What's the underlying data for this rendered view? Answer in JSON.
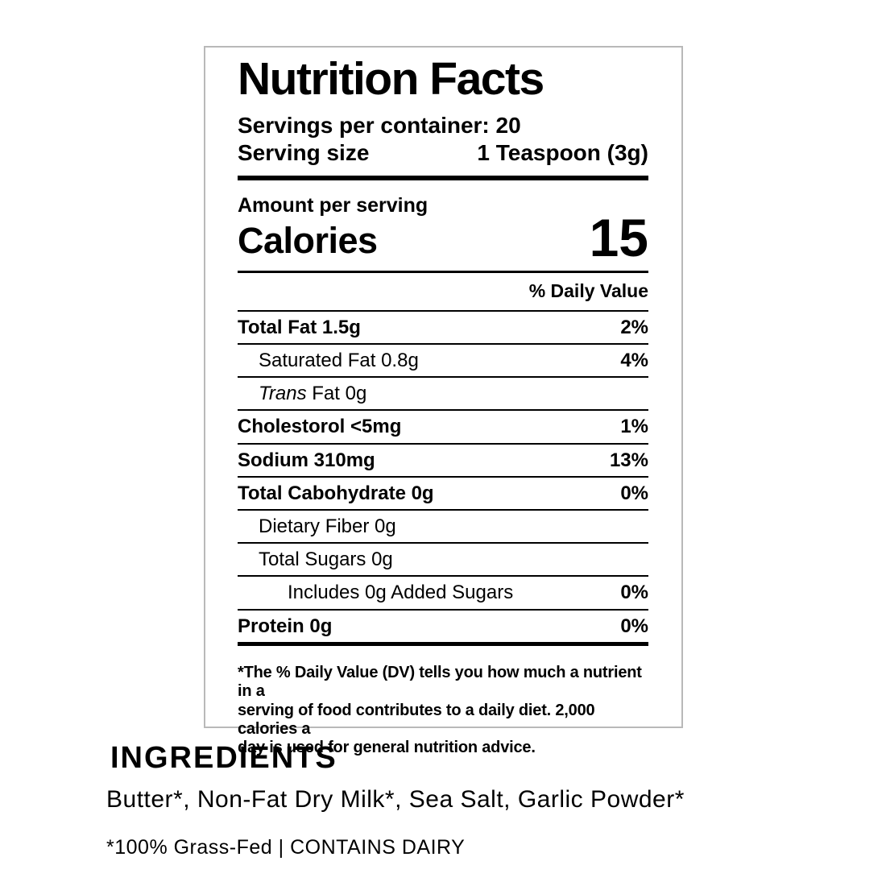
{
  "label": {
    "title": "Nutrition Facts",
    "servings_per_container": "Servings per container: 20",
    "serving_size_label": "Serving size",
    "serving_size_value": "1 Teaspoon (3g)",
    "amount_per_serving": "Amount per serving",
    "calories_label": "Calories",
    "calories_value": "15",
    "daily_value_header": "% Daily Value",
    "rows": [
      {
        "label": "Total Fat 1.5g",
        "dv": "2%",
        "bold": true,
        "indent": 0
      },
      {
        "label": "Saturated Fat 0.8g",
        "dv": "4%",
        "bold": false,
        "indent": 1
      },
      {
        "label_italic": "Trans",
        "label": " Fat 0g",
        "dv": "",
        "bold": false,
        "indent": 1
      },
      {
        "label": "Cholestorol <5mg",
        "dv": "1%",
        "bold": true,
        "indent": 0
      },
      {
        "label": "Sodium 310mg",
        "dv": "13%",
        "bold": true,
        "indent": 0
      },
      {
        "label": "Total Cabohydrate 0g",
        "dv": "0%",
        "bold": true,
        "indent": 0
      },
      {
        "label": "Dietary Fiber 0g",
        "dv": "",
        "bold": false,
        "indent": 1
      },
      {
        "label": "Total Sugars 0g",
        "dv": "",
        "bold": false,
        "indent": 1
      },
      {
        "label": "Includes 0g Added Sugars",
        "dv": "0%",
        "bold": false,
        "indent": 2
      },
      {
        "label": "Protein 0g",
        "dv": "0%",
        "bold": true,
        "indent": 0,
        "last": true
      }
    ],
    "footnote": "*The % Daily Value (DV) tells you how much a nutrient in a\nserving of food contributes to a daily diet. 2,000 calories a\nday is used for general nutrition advice.",
    "colors": {
      "text": "#000000",
      "border": "#b9b9b9",
      "background": "#ffffff"
    }
  },
  "ingredients": {
    "heading": "INGREDIENTS",
    "list": "Butter*, Non-Fat Dry Milk*, Sea Salt, Garlic Powder*",
    "note": "*100% Grass-Fed | CONTAINS DAIRY"
  }
}
